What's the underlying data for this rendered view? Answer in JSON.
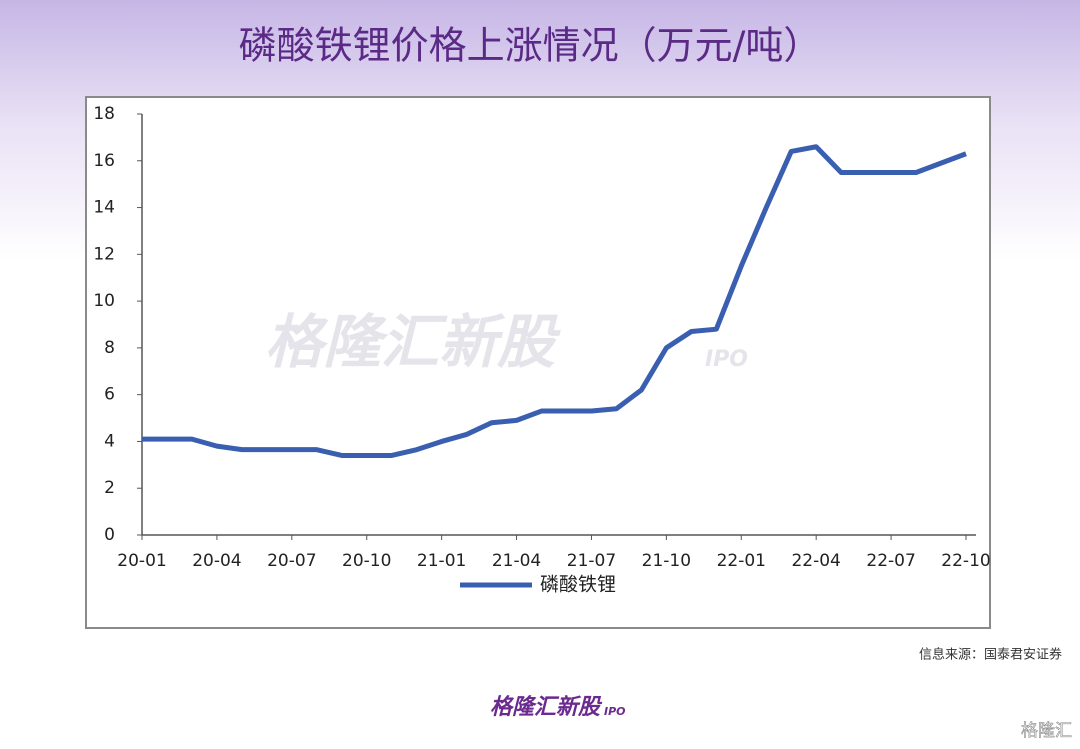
{
  "chart_data": {
    "type": "line",
    "title": "磷酸铁锂价格上涨情况（万元/吨）",
    "categories": [
      "20-01",
      null,
      null,
      "20-04",
      null,
      null,
      "20-07",
      null,
      null,
      "20-10",
      null,
      null,
      "21-01",
      null,
      null,
      "21-04",
      null,
      null,
      "21-07",
      null,
      null,
      "21-10",
      null,
      null,
      "22-01",
      null,
      null,
      "22-04",
      null,
      null,
      "22-07",
      null,
      null,
      "22-10"
    ],
    "series": [
      {
        "name": "磷酸铁锂",
        "color": "#3a5fb0",
        "values": [
          4.1,
          4.1,
          4.1,
          3.8,
          3.65,
          3.65,
          3.65,
          3.65,
          3.4,
          3.4,
          3.4,
          3.65,
          4.0,
          4.3,
          4.8,
          4.9,
          5.3,
          5.3,
          5.3,
          5.4,
          6.2,
          8.0,
          8.7,
          8.8,
          11.5,
          14.0,
          16.4,
          16.6,
          15.5,
          15.5,
          15.5,
          15.5,
          15.9,
          16.3
        ]
      }
    ],
    "ylim": [
      0,
      18
    ],
    "yticks": [
      0,
      2,
      4,
      6,
      8,
      10,
      12,
      14,
      16,
      18
    ],
    "legend": "bottom"
  },
  "source": "信息来源：国泰君安证券",
  "watermark": {
    "brand": "格隆汇新股",
    "tag": "IPO"
  },
  "footer": {
    "brand": "格隆汇新股",
    "tag": "IPO",
    "corner": "格隆汇"
  }
}
